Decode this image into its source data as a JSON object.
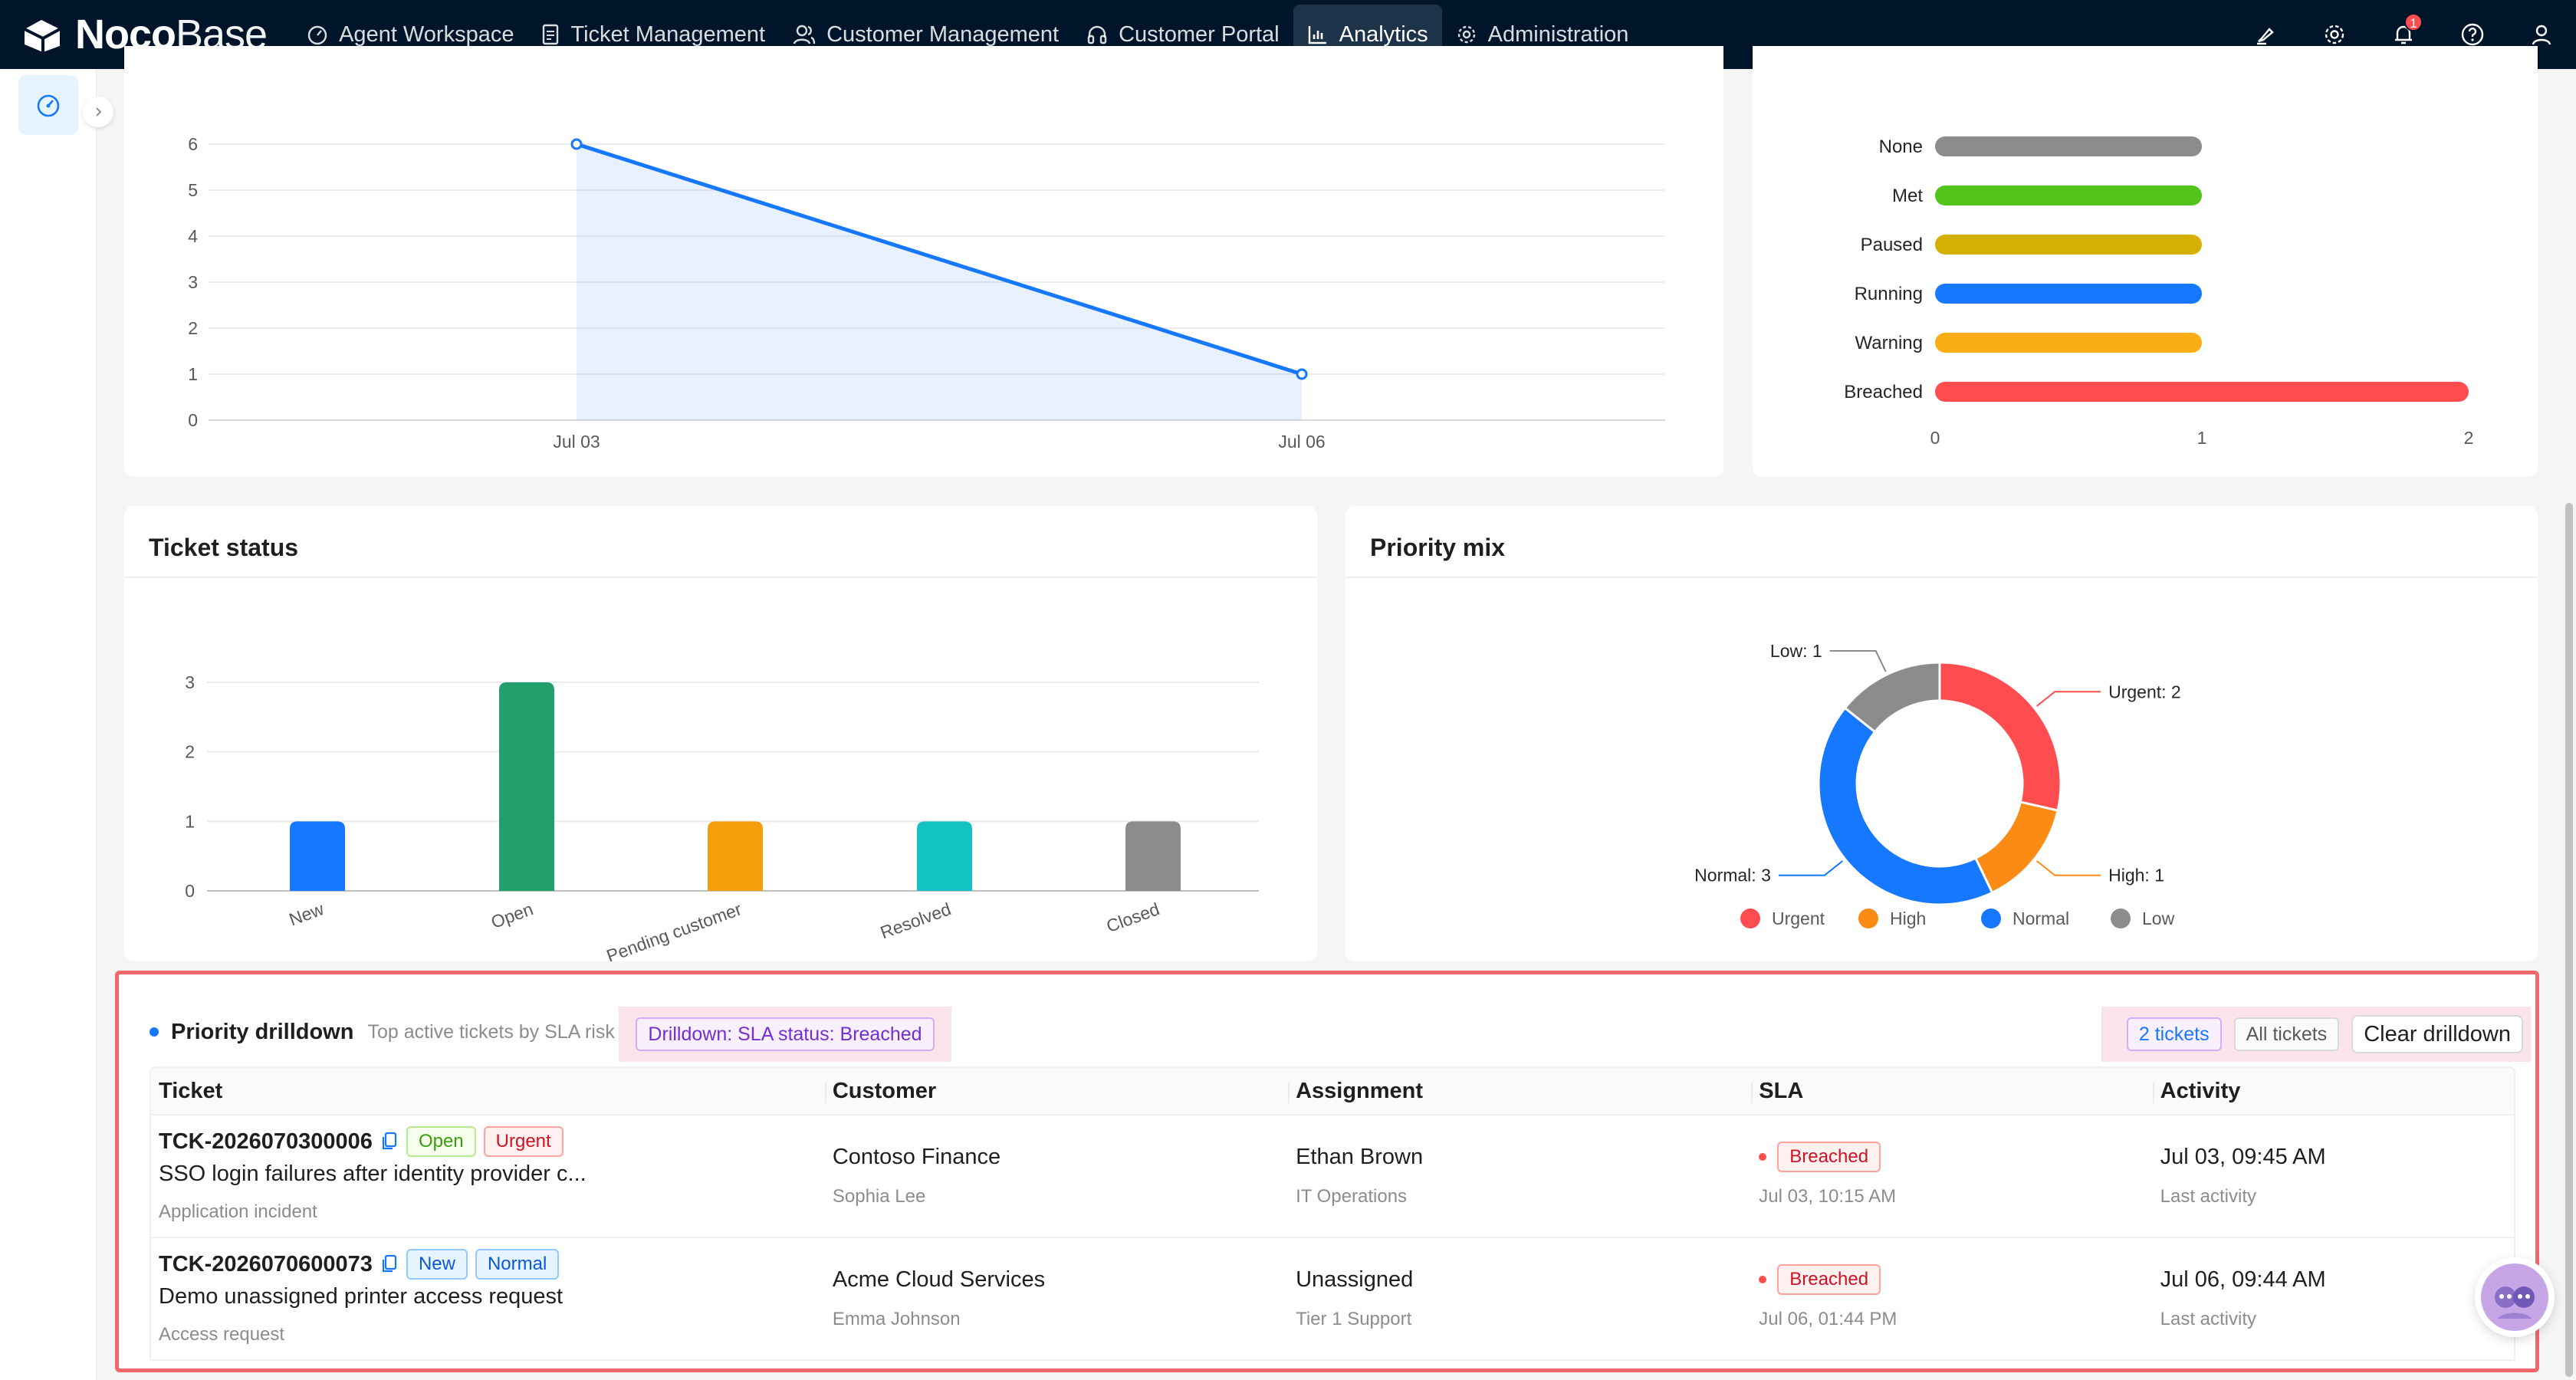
{
  "app": {
    "logo_bold": "Noco",
    "logo_light": "Base",
    "notification_count": "1"
  },
  "nav": [
    {
      "label": "Agent Workspace",
      "icon": "dashboard-icon"
    },
    {
      "label": "Ticket Management",
      "icon": "file-icon"
    },
    {
      "label": "Customer Management",
      "icon": "users-icon"
    },
    {
      "label": "Customer Portal",
      "icon": "headset-icon"
    },
    {
      "label": "Analytics",
      "icon": "bar-chart-icon",
      "active": true
    },
    {
      "label": "Administration",
      "icon": "gear-icon"
    }
  ],
  "chart_data": [
    {
      "type": "area",
      "title": "",
      "x": [
        "Jul 03",
        "Jul 06"
      ],
      "values": [
        6,
        1
      ],
      "ylim": [
        0,
        6
      ],
      "yticks": [
        0,
        1,
        2,
        3,
        4,
        5,
        6
      ],
      "grid": true,
      "color": "#1677ff"
    },
    {
      "type": "bar",
      "orientation": "horizontal",
      "categories": [
        "None",
        "Met",
        "Paused",
        "Running",
        "Warning",
        "Breached"
      ],
      "values": [
        1,
        1,
        1,
        1,
        1,
        2
      ],
      "colors": [
        "#8c8c8c",
        "#52c41a",
        "#d4b106",
        "#1677ff",
        "#faad14",
        "#ff4d4f"
      ],
      "xlim": [
        0,
        2
      ],
      "xticks": [
        0,
        1,
        2
      ]
    },
    {
      "type": "bar",
      "title": "Ticket status",
      "categories": [
        "New",
        "Open",
        "Pending customer",
        "Resolved",
        "Closed"
      ],
      "values": [
        1,
        3,
        1,
        1,
        1
      ],
      "colors": [
        "#1677ff",
        "#22a06b",
        "#f59e0b",
        "#13c2c2",
        "#8c8c8c"
      ],
      "ylim": [
        0,
        3
      ],
      "yticks": [
        0,
        1,
        2,
        3
      ],
      "grid": true
    },
    {
      "type": "pie",
      "title": "Priority mix",
      "donut": true,
      "categories": [
        "Urgent",
        "High",
        "Normal",
        "Low"
      ],
      "values": [
        2,
        1,
        3,
        1
      ],
      "labels": [
        "Urgent: 2",
        "High: 1",
        "Normal: 3",
        "Low: 1"
      ],
      "colors": [
        "#ff4d4f",
        "#fa8c16",
        "#1677ff",
        "#8c8c8c"
      ],
      "legend": "bottom"
    }
  ],
  "cards": {
    "status_title": "Ticket status",
    "priority_title": "Priority mix"
  },
  "drilldown": {
    "title": "Priority drilldown",
    "subtitle": "Top active tickets by SLA risk",
    "filter_tag": "Drilldown: SLA status: Breached",
    "count_tag": "2 tickets",
    "all_tag": "All tickets",
    "clear_button": "Clear drilldown",
    "columns": [
      "Ticket",
      "Customer",
      "Assignment",
      "SLA",
      "Activity"
    ],
    "rows": [
      {
        "id": "TCK-2026070300006",
        "status": "Open",
        "priority": "Urgent",
        "subject": "SSO login failures after identity provider c...",
        "type": "Application incident",
        "customer": "Contoso Finance",
        "contact": "Sophia Lee",
        "assignee": "Ethan Brown",
        "team": "IT Operations",
        "sla": "Breached",
        "sla_time": "Jul 03, 10:15 AM",
        "activity": "Jul 03, 09:45 AM",
        "activity_label": "Last activity"
      },
      {
        "id": "TCK-2026070600073",
        "status": "New",
        "priority": "Normal",
        "subject": "Demo unassigned printer access request",
        "type": "Access request",
        "customer": "Acme Cloud Services",
        "contact": "Emma Johnson",
        "assignee": "Unassigned",
        "team": "Tier 1 Support",
        "sla": "Breached",
        "sla_time": "Jul 06, 01:44 PM",
        "activity": "Jul 06, 09:44 AM",
        "activity_label": "Last activity"
      }
    ]
  }
}
